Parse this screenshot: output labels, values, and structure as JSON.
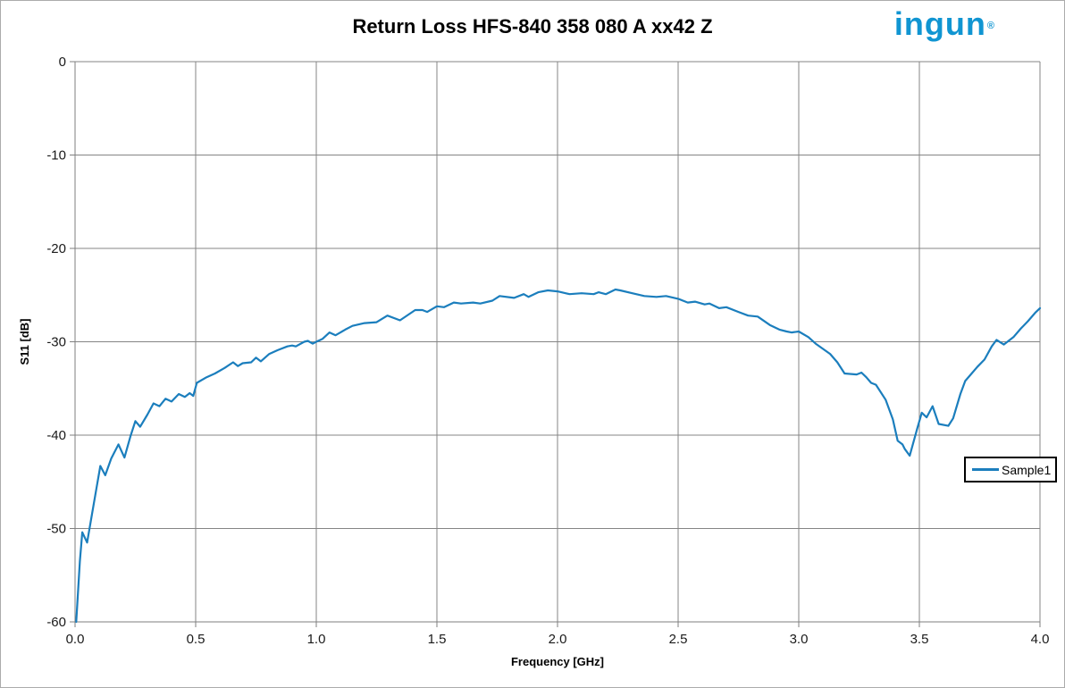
{
  "header": {
    "title": "Return Loss HFS-840 358 080 A xx42 Z",
    "logo_text": "ingun",
    "logo_reg_mark": "®",
    "logo_color": "#1095d2"
  },
  "chart_data": {
    "type": "line",
    "title": "Return Loss HFS-840 358 080 A xx42 Z",
    "xlabel": "Frequency [GHz]",
    "ylabel": "S11 [dB]",
    "xlim": [
      0,
      4
    ],
    "ylim": [
      -60,
      0
    ],
    "x_ticks": [
      "0.0",
      "0.5",
      "1.0",
      "1.5",
      "2.0",
      "2.5",
      "3.0",
      "3.5",
      "4.0"
    ],
    "x_tick_values": [
      0,
      0.5,
      1,
      1.5,
      2,
      2.5,
      3,
      3.5,
      4
    ],
    "y_ticks": [
      "0",
      "-10",
      "-20",
      "-30",
      "-40",
      "-50",
      "-60"
    ],
    "y_tick_values": [
      0,
      -10,
      -20,
      -30,
      -40,
      -50,
      -60
    ],
    "grid": true,
    "gridline_color": "#858585",
    "legend_position": "right",
    "series": [
      {
        "name": "Sample1",
        "color": "#1b7ebd",
        "points": [
          [
            0.005,
            -60.0
          ],
          [
            0.02,
            -53.5
          ],
          [
            0.03,
            -50.4
          ],
          [
            0.05,
            -51.5
          ],
          [
            0.07,
            -48.5
          ],
          [
            0.09,
            -45.5
          ],
          [
            0.105,
            -43.3
          ],
          [
            0.125,
            -44.3
          ],
          [
            0.15,
            -42.5
          ],
          [
            0.18,
            -41.0
          ],
          [
            0.205,
            -42.4
          ],
          [
            0.23,
            -40.1
          ],
          [
            0.25,
            -38.5
          ],
          [
            0.27,
            -39.1
          ],
          [
            0.3,
            -37.8
          ],
          [
            0.325,
            -36.6
          ],
          [
            0.35,
            -36.9
          ],
          [
            0.375,
            -36.1
          ],
          [
            0.4,
            -36.4
          ],
          [
            0.43,
            -35.6
          ],
          [
            0.455,
            -35.9
          ],
          [
            0.475,
            -35.5
          ],
          [
            0.49,
            -35.8
          ],
          [
            0.505,
            -34.4
          ],
          [
            0.545,
            -33.8
          ],
          [
            0.58,
            -33.4
          ],
          [
            0.62,
            -32.8
          ],
          [
            0.655,
            -32.2
          ],
          [
            0.675,
            -32.6
          ],
          [
            0.695,
            -32.3
          ],
          [
            0.73,
            -32.2
          ],
          [
            0.75,
            -31.7
          ],
          [
            0.77,
            -32.1
          ],
          [
            0.805,
            -31.3
          ],
          [
            0.84,
            -30.9
          ],
          [
            0.88,
            -30.5
          ],
          [
            0.9,
            -30.4
          ],
          [
            0.915,
            -30.5
          ],
          [
            0.95,
            -30.0
          ],
          [
            0.965,
            -29.9
          ],
          [
            0.985,
            -30.2
          ],
          [
            1.0,
            -30.0
          ],
          [
            1.025,
            -29.7
          ],
          [
            1.055,
            -29.0
          ],
          [
            1.08,
            -29.3
          ],
          [
            1.12,
            -28.7
          ],
          [
            1.15,
            -28.3
          ],
          [
            1.2,
            -28.0
          ],
          [
            1.25,
            -27.9
          ],
          [
            1.295,
            -27.2
          ],
          [
            1.347,
            -27.7
          ],
          [
            1.41,
            -26.6
          ],
          [
            1.44,
            -26.6
          ],
          [
            1.46,
            -26.8
          ],
          [
            1.5,
            -26.2
          ],
          [
            1.53,
            -26.3
          ],
          [
            1.57,
            -25.8
          ],
          [
            1.6,
            -25.9
          ],
          [
            1.65,
            -25.8
          ],
          [
            1.68,
            -25.9
          ],
          [
            1.73,
            -25.6
          ],
          [
            1.76,
            -25.1
          ],
          [
            1.82,
            -25.3
          ],
          [
            1.86,
            -24.9
          ],
          [
            1.88,
            -25.2
          ],
          [
            1.92,
            -24.7
          ],
          [
            1.96,
            -24.5
          ],
          [
            2.0,
            -24.6
          ],
          [
            2.05,
            -24.9
          ],
          [
            2.1,
            -24.8
          ],
          [
            2.15,
            -24.9
          ],
          [
            2.17,
            -24.7
          ],
          [
            2.2,
            -24.9
          ],
          [
            2.24,
            -24.4
          ],
          [
            2.26,
            -24.5
          ],
          [
            2.31,
            -24.8
          ],
          [
            2.36,
            -25.1
          ],
          [
            2.41,
            -25.2
          ],
          [
            2.45,
            -25.1
          ],
          [
            2.5,
            -25.4
          ],
          [
            2.54,
            -25.8
          ],
          [
            2.57,
            -25.7
          ],
          [
            2.61,
            -26.0
          ],
          [
            2.63,
            -25.9
          ],
          [
            2.67,
            -26.4
          ],
          [
            2.7,
            -26.3
          ],
          [
            2.75,
            -26.8
          ],
          [
            2.79,
            -27.2
          ],
          [
            2.83,
            -27.3
          ],
          [
            2.88,
            -28.2
          ],
          [
            2.92,
            -28.7
          ],
          [
            2.95,
            -28.9
          ],
          [
            2.97,
            -29.0
          ],
          [
            3.0,
            -28.9
          ],
          [
            3.04,
            -29.5
          ],
          [
            3.07,
            -30.2
          ],
          [
            3.13,
            -31.3
          ],
          [
            3.16,
            -32.2
          ],
          [
            3.19,
            -33.4
          ],
          [
            3.24,
            -33.5
          ],
          [
            3.26,
            -33.3
          ],
          [
            3.28,
            -33.8
          ],
          [
            3.3,
            -34.4
          ],
          [
            3.32,
            -34.6
          ],
          [
            3.36,
            -36.2
          ],
          [
            3.39,
            -38.3
          ],
          [
            3.41,
            -40.6
          ],
          [
            3.43,
            -41.0
          ],
          [
            3.44,
            -41.5
          ],
          [
            3.46,
            -42.2
          ],
          [
            3.49,
            -39.4
          ],
          [
            3.51,
            -37.6
          ],
          [
            3.53,
            -38.1
          ],
          [
            3.555,
            -36.9
          ],
          [
            3.58,
            -38.8
          ],
          [
            3.62,
            -39.0
          ],
          [
            3.64,
            -38.2
          ],
          [
            3.67,
            -35.6
          ],
          [
            3.69,
            -34.2
          ],
          [
            3.71,
            -33.6
          ],
          [
            3.74,
            -32.7
          ],
          [
            3.77,
            -31.9
          ],
          [
            3.8,
            -30.5
          ],
          [
            3.82,
            -29.8
          ],
          [
            3.85,
            -30.3
          ],
          [
            3.89,
            -29.5
          ],
          [
            3.92,
            -28.6
          ],
          [
            3.95,
            -27.8
          ],
          [
            3.98,
            -26.9
          ],
          [
            4.0,
            -26.4
          ]
        ]
      }
    ]
  }
}
